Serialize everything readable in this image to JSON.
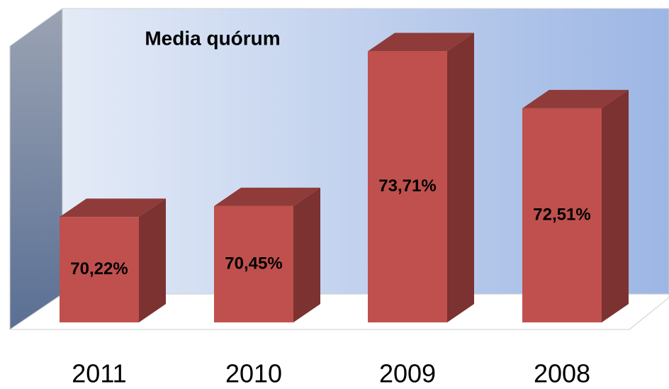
{
  "chart_data": {
    "type": "bar3d",
    "title": "Media quórum",
    "categories": [
      "2011",
      "2010",
      "2009",
      "2008"
    ],
    "values": [
      70.22,
      70.45,
      73.71,
      72.51
    ],
    "value_labels": [
      "70,22%",
      "70,45%",
      "73,71%",
      "72,51%"
    ],
    "color": "#c0504d",
    "ylim": [
      68,
      74
    ]
  }
}
